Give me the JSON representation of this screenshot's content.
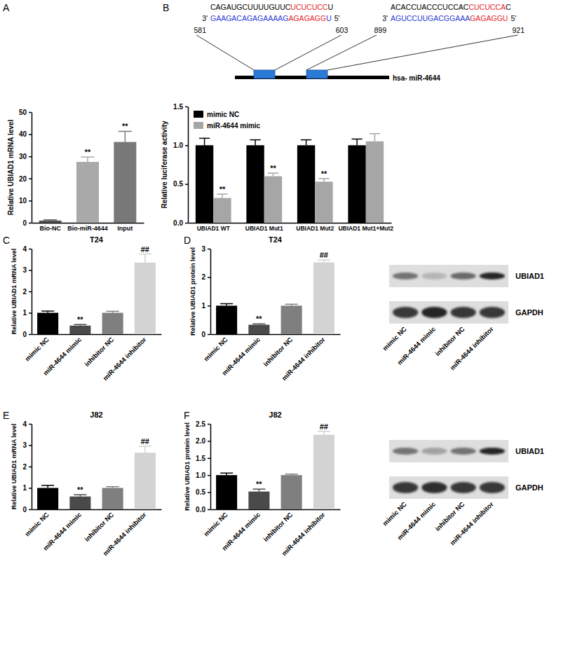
{
  "chart_data": [
    {
      "type": "bar",
      "panel": "A",
      "categories": [
        "Bio-NC",
        "Bio-miR-4644",
        "Input"
      ],
      "values": [
        1,
        27.5,
        36.5
      ],
      "errors": [
        0.3,
        2.2,
        4.8
      ],
      "colors": [
        "#555555",
        "#a9a9a9",
        "#787878"
      ],
      "annotations": [
        null,
        "**",
        "**"
      ],
      "ylabel": "Relative UBIAD1 mRNA level",
      "ylim": [
        0,
        50
      ],
      "yticks": [
        0,
        10,
        20,
        30,
        40,
        50
      ]
    },
    {
      "type": "bar",
      "panel": "B",
      "categories": [
        "UBIAD1 WT",
        "UBIAD1 Mut1",
        "UBIAD1 Mut2",
        "UBIAD1 Mut1+Mut2"
      ],
      "series": [
        {
          "name": "mimic NC",
          "color": "#000000",
          "values": [
            1,
            1,
            1,
            1
          ],
          "errors": [
            0.09,
            0.07,
            0.07,
            0.08
          ]
        },
        {
          "name": "miR-4644 mimic",
          "color": "#a6a6a6",
          "values": [
            0.32,
            0.6,
            0.53,
            1.05
          ],
          "errors": [
            0.05,
            0.04,
            0.04,
            0.1
          ],
          "annotations": [
            "**",
            "**",
            "**",
            null
          ]
        }
      ],
      "legend": "upper left",
      "ylabel": "Relative luciferase activity",
      "ylim": [
        0,
        1.5
      ],
      "yticks": [
        {
          "value": 0,
          "label": "0.0"
        },
        {
          "value": 0.5,
          "label": "0.5"
        },
        {
          "value": 1,
          "label": "1.0"
        },
        {
          "value": 1.5,
          "label": "1.5"
        }
      ]
    },
    {
      "type": "bar",
      "panel": "C",
      "title": "T24",
      "categories": [
        "mimic NC",
        "miR-4644 mimic",
        "inhibitor NC",
        "miR-4644 inhibitor"
      ],
      "values": [
        1,
        0.4,
        1,
        3.35
      ],
      "errors": [
        0.08,
        0.05,
        0.07,
        0.4
      ],
      "colors": [
        "#000000",
        "#4a4a4a",
        "#7f7f7f",
        "#d3d3d3"
      ],
      "annotations": [
        null,
        "**",
        null,
        "##"
      ],
      "ylabel": "Relative UBIAD1 mRNA level",
      "ylim": [
        0,
        4
      ],
      "yticks": [
        0,
        1,
        2,
        3,
        4
      ]
    },
    {
      "type": "bar",
      "panel": "D",
      "title": "T24",
      "categories": [
        "mimic NC",
        "miR-4644 mimic",
        "inhibitor NC",
        "miR-4644 inhibitor"
      ],
      "values": [
        1,
        0.33,
        1,
        2.52
      ],
      "errors": [
        0.07,
        0.03,
        0.05,
        0.08
      ],
      "colors": [
        "#000000",
        "#4a4a4a",
        "#7f7f7f",
        "#d3d3d3"
      ],
      "annotations": [
        null,
        "**",
        null,
        "##"
      ],
      "ylabel": "Relative UBIAD1 protein level",
      "ylim": [
        0,
        3
      ],
      "yticks": [
        0,
        1,
        2,
        3
      ]
    },
    {
      "type": "bar",
      "panel": "E",
      "title": "J82",
      "categories": [
        "mimic NC",
        "miR-4644 mimic",
        "inhibitor NC",
        "miR-4644 inhibitor"
      ],
      "values": [
        1,
        0.6,
        1,
        2.65
      ],
      "errors": [
        0.12,
        0.08,
        0.06,
        0.3
      ],
      "colors": [
        "#000000",
        "#4a4a4a",
        "#7f7f7f",
        "#d3d3d3"
      ],
      "annotations": [
        null,
        "**",
        null,
        "##"
      ],
      "ylabel": "Relative UBIAD1 mRNA level",
      "ylim": [
        0,
        4
      ],
      "yticks": [
        0,
        1,
        2,
        3,
        4
      ]
    },
    {
      "type": "bar",
      "panel": "F",
      "title": "J82",
      "categories": [
        "mimic NC",
        "miR-4644 mimic",
        "inhibitor NC",
        "miR-4644 inhibitor"
      ],
      "values": [
        1,
        0.52,
        1,
        2.18
      ],
      "errors": [
        0.06,
        0.07,
        0.03,
        0.1
      ],
      "colors": [
        "#000000",
        "#4a4a4a",
        "#7f7f7f",
        "#d3d3d3"
      ],
      "annotations": [
        null,
        "**",
        null,
        "##"
      ],
      "ylabel": "Relative UBIAD1 protein level",
      "ylim": [
        0,
        2.5
      ],
      "yticks": [
        {
          "value": 0,
          "label": "0.0"
        },
        {
          "value": 0.5,
          "label": "0.5"
        },
        {
          "value": 1,
          "label": "1.0"
        },
        {
          "value": 1.5,
          "label": "1.5"
        },
        {
          "value": 2,
          "label": "2.0"
        },
        {
          "value": 2.5,
          "label": "2.5"
        }
      ]
    }
  ],
  "diagram": {
    "label": "hsa- miR-4644",
    "sites": [
      {
        "start": 581,
        "end": 603,
        "left_end": "3'",
        "right_end": "5'",
        "target": [
          {
            "text": "CAGAUGCUUUUGUUC",
            "color": "#000000"
          },
          {
            "text": "UCUCUCC",
            "color": "#e8262a"
          },
          {
            "text": "U",
            "color": "#000000"
          }
        ],
        "mirna": [
          {
            "text": "GAAGACAGAGAAAAG",
            "color": "#2a3cd6"
          },
          {
            "text": "AGAGAGG",
            "color": "#e8262a"
          },
          {
            "text": "U",
            "color": "#2a3cd6"
          }
        ]
      },
      {
        "start": 899,
        "end": 921,
        "left_end": "3'",
        "right_end": "5'",
        "target": [
          {
            "text": "ACACCUACCCUCCAC",
            "color": "#000000"
          },
          {
            "text": "CUCUCCA",
            "color": "#e8262a"
          },
          {
            "text": "C",
            "color": "#000000"
          }
        ],
        "mirna": [
          {
            "text": "AGUCCUUGACGGAAA",
            "color": "#2a3cd6"
          },
          {
            "text": "GAGAGGU",
            "color": "#e8262a"
          }
        ]
      }
    ]
  },
  "blots": [
    {
      "rows": [
        "UBIAD1",
        "GAPDH"
      ],
      "lanes": [
        "mimic NC",
        "miR-4644 mimic",
        "inhibitor NC",
        "miR-4644 inhibitor"
      ]
    },
    {
      "rows": [
        "UBIAD1",
        "GAPDH"
      ],
      "lanes": [
        "mimic NC",
        "miR-4644 mimic",
        "inhibitor NC",
        "miR-4644 inhibitor"
      ]
    }
  ]
}
